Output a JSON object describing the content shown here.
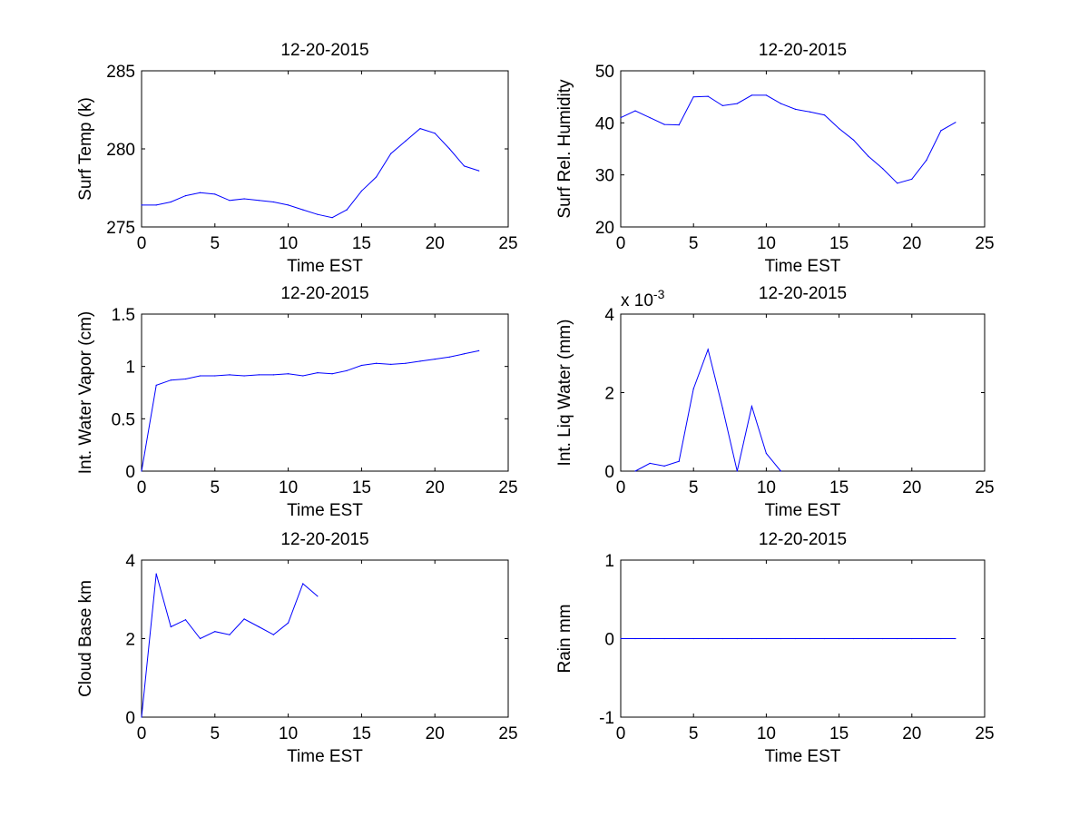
{
  "figure": {
    "background": "#ffffff",
    "line_color": "#0000ff",
    "axis_color": "#000000"
  },
  "chart_data": [
    {
      "type": "line",
      "title": "12-20-2015",
      "xlabel": "Time EST",
      "ylabel": "Surf Temp (k)",
      "xlim": [
        0,
        25
      ],
      "ylim": [
        275,
        285
      ],
      "xticks": [
        0,
        5,
        10,
        15,
        20,
        25
      ],
      "xtick_labels": [
        "0",
        "5",
        "10",
        "15",
        "20",
        "25"
      ],
      "yticks": [
        275,
        280,
        285
      ],
      "ytick_labels": [
        "275",
        "280",
        "285"
      ],
      "exponent_label": null,
      "series": [
        {
          "name": "Surf Temp",
          "x": [
            0,
            1,
            2,
            3,
            4,
            5,
            6,
            7,
            8,
            9,
            10,
            11,
            12,
            13,
            14,
            15,
            16,
            17,
            18,
            19,
            20,
            21,
            22,
            23
          ],
          "y": [
            276.4,
            276.4,
            276.6,
            277.0,
            277.2,
            277.1,
            276.7,
            276.8,
            276.7,
            276.6,
            276.4,
            276.1,
            275.8,
            275.6,
            276.1,
            277.3,
            278.2,
            279.7,
            280.5,
            281.3,
            281.0,
            280.0,
            278.9,
            278.6
          ]
        }
      ]
    },
    {
      "type": "line",
      "title": "12-20-2015",
      "xlabel": "Time EST",
      "ylabel": "Surf Rel. Humidity",
      "xlim": [
        0,
        25
      ],
      "ylim": [
        20,
        50
      ],
      "xticks": [
        0,
        5,
        10,
        15,
        20,
        25
      ],
      "xtick_labels": [
        "0",
        "5",
        "10",
        "15",
        "20",
        "25"
      ],
      "yticks": [
        20,
        30,
        40,
        50
      ],
      "ytick_labels": [
        "20",
        "30",
        "40",
        "50"
      ],
      "exponent_label": null,
      "series": [
        {
          "name": "Surf Rel. Humidity",
          "x": [
            0,
            1,
            2,
            3,
            4,
            5,
            6,
            7,
            8,
            9,
            10,
            11,
            12,
            13,
            14,
            15,
            16,
            17,
            18,
            19,
            20,
            21,
            22,
            23
          ],
          "y": [
            41.0,
            42.3,
            41.0,
            39.7,
            39.6,
            45.0,
            45.1,
            43.3,
            43.7,
            45.3,
            45.3,
            43.7,
            42.6,
            42.1,
            41.5,
            38.9,
            36.7,
            33.6,
            31.2,
            28.4,
            29.2,
            32.8,
            38.5,
            40.1
          ]
        }
      ]
    },
    {
      "type": "line",
      "title": "12-20-2015",
      "xlabel": "Time EST",
      "ylabel": "Int. Water Vapor (cm)",
      "xlim": [
        0,
        25
      ],
      "ylim": [
        0,
        1.5
      ],
      "xticks": [
        0,
        5,
        10,
        15,
        20,
        25
      ],
      "xtick_labels": [
        "0",
        "5",
        "10",
        "15",
        "20",
        "25"
      ],
      "yticks": [
        0,
        0.5,
        1,
        1.5
      ],
      "ytick_labels": [
        "0",
        "0.5",
        "1",
        "1.5"
      ],
      "exponent_label": null,
      "series": [
        {
          "name": "Int. Water Vapor",
          "x": [
            0,
            1,
            2,
            3,
            4,
            5,
            6,
            7,
            8,
            9,
            10,
            11,
            12,
            13,
            14,
            15,
            16,
            17,
            18,
            19,
            20,
            21,
            22,
            23
          ],
          "y": [
            0.0,
            0.82,
            0.87,
            0.88,
            0.91,
            0.91,
            0.92,
            0.91,
            0.92,
            0.92,
            0.93,
            0.91,
            0.94,
            0.93,
            0.96,
            1.01,
            1.03,
            1.02,
            1.03,
            1.05,
            1.07,
            1.09,
            1.12,
            1.15
          ]
        }
      ]
    },
    {
      "type": "line",
      "title": "12-20-2015",
      "xlabel": "Time EST",
      "ylabel": "Int. Liq Water (mm)",
      "xlim": [
        0,
        25
      ],
      "ylim": [
        0,
        4
      ],
      "xticks": [
        0,
        5,
        10,
        15,
        20,
        25
      ],
      "xtick_labels": [
        "0",
        "5",
        "10",
        "15",
        "20",
        "25"
      ],
      "yticks": [
        0,
        2,
        4
      ],
      "ytick_labels": [
        "0",
        "2",
        "4"
      ],
      "exponent_label": {
        "base": "x 10",
        "power": "-3"
      },
      "series": [
        {
          "name": "Int. Liq Water (x 10^-3)",
          "x": [
            1,
            2,
            3,
            4,
            5,
            6,
            7,
            8,
            9,
            10,
            11
          ],
          "y": [
            0.0,
            0.2,
            0.13,
            0.25,
            2.1,
            3.1,
            1.6,
            0.0,
            1.65,
            0.45,
            0.0
          ]
        }
      ]
    },
    {
      "type": "line",
      "title": "12-20-2015",
      "xlabel": "Time EST",
      "ylabel": "Cloud Base km",
      "xlim": [
        0,
        25
      ],
      "ylim": [
        0,
        4
      ],
      "xticks": [
        0,
        5,
        10,
        15,
        20,
        25
      ],
      "xtick_labels": [
        "0",
        "5",
        "10",
        "15",
        "20",
        "25"
      ],
      "yticks": [
        0,
        2,
        4
      ],
      "ytick_labels": [
        "0",
        "2",
        "4"
      ],
      "exponent_label": null,
      "series": [
        {
          "name": "Cloud Base",
          "x": [
            0,
            1,
            2,
            3,
            4,
            5,
            6,
            7,
            8,
            9,
            10,
            11,
            12
          ],
          "y": [
            0.0,
            3.65,
            2.3,
            2.48,
            2.0,
            2.18,
            2.1,
            2.5,
            2.3,
            2.1,
            2.4,
            3.4,
            3.08
          ]
        }
      ]
    },
    {
      "type": "line",
      "title": "12-20-2015",
      "xlabel": "Time EST",
      "ylabel": "Rain mm",
      "xlim": [
        0,
        25
      ],
      "ylim": [
        -1,
        1
      ],
      "xticks": [
        0,
        5,
        10,
        15,
        20,
        25
      ],
      "xtick_labels": [
        "0",
        "5",
        "10",
        "15",
        "20",
        "25"
      ],
      "yticks": [
        -1,
        0,
        1
      ],
      "ytick_labels": [
        "-1",
        "0",
        "1"
      ],
      "exponent_label": null,
      "series": [
        {
          "name": "Rain",
          "x": [
            0,
            1,
            2,
            3,
            4,
            5,
            6,
            7,
            8,
            9,
            10,
            11,
            12,
            13,
            14,
            15,
            16,
            17,
            18,
            19,
            20,
            21,
            22,
            23
          ],
          "y": [
            0,
            0,
            0,
            0,
            0,
            0,
            0,
            0,
            0,
            0,
            0,
            0,
            0,
            0,
            0,
            0,
            0,
            0,
            0,
            0,
            0,
            0,
            0,
            0
          ]
        }
      ]
    }
  ]
}
